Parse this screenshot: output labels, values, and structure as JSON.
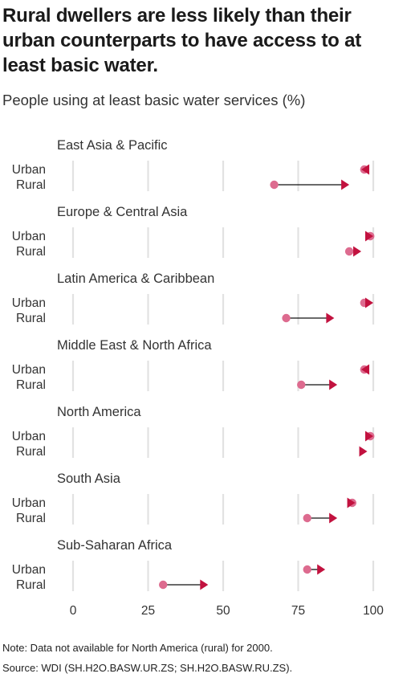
{
  "title": "Rural dwellers are less likely than their urban counterparts to have access to at least basic water.",
  "subtitle": "People using at least basic water services (%)",
  "notes": {
    "note": "Note: Data not available for North America (rural) for 2000.",
    "source": "Source: WDI (SH.H2O.BASW.UR.ZS; SH.H2O.BASW.RU.ZS)."
  },
  "colors": {
    "start_dot": "#dd6b8f",
    "end_arrow": "#c2123f",
    "connector": "#111111",
    "grid": "#e2e2e2",
    "text": "#333333"
  },
  "chart_data": {
    "type": "dot-arrow",
    "x_ticks": [
      0,
      25,
      50,
      75,
      100
    ],
    "xlim": [
      0,
      100
    ],
    "row_labels": [
      "Urban",
      "Rural"
    ],
    "panels": [
      {
        "name": "East Asia & Pacific",
        "urban": {
          "start": 97,
          "end": 96
        },
        "rural": {
          "start": 67,
          "end": 92
        }
      },
      {
        "name": "Europe & Central Asia",
        "urban": {
          "start": 99,
          "end": 100
        },
        "rural": {
          "start": 92,
          "end": 96
        }
      },
      {
        "name": "Latin America & Caribbean",
        "urban": {
          "start": 97,
          "end": 100
        },
        "rural": {
          "start": 71,
          "end": 87
        }
      },
      {
        "name": "Middle East & North Africa",
        "urban": {
          "start": 97,
          "end": 96
        },
        "rural": {
          "start": 76,
          "end": 88
        }
      },
      {
        "name": "North America",
        "urban": {
          "start": 99,
          "end": 100
        },
        "rural": {
          "start": null,
          "end": 98
        }
      },
      {
        "name": "South Asia",
        "urban": {
          "start": 93,
          "end": 94
        },
        "rural": {
          "start": 78,
          "end": 88
        }
      },
      {
        "name": "Sub-Saharan Africa",
        "urban": {
          "start": 78,
          "end": 84
        },
        "rural": {
          "start": 30,
          "end": 45
        }
      }
    ]
  }
}
